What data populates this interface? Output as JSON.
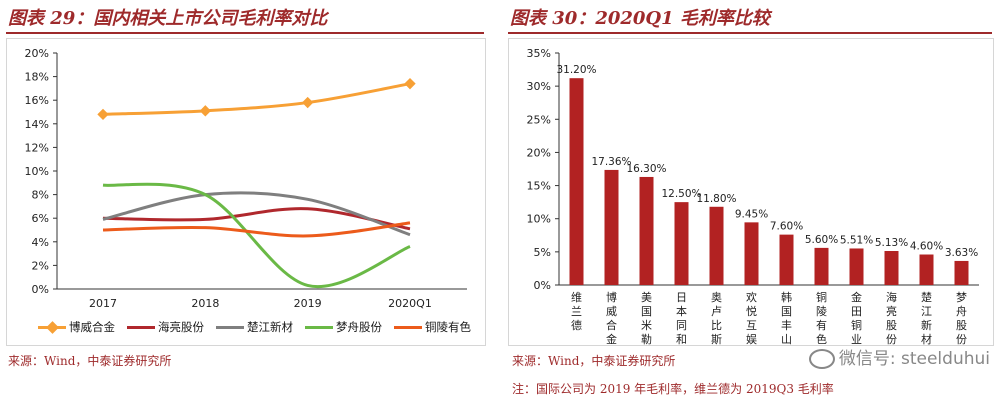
{
  "left_panel": {
    "title": "图表 29：国内相关上市公司毛利率对比",
    "source": "来源：Wind，中泰证券研究所"
  },
  "right_panel": {
    "title": "图表 30：2020Q1 毛利率比较",
    "source": "来源：Wind，中泰证券研究所",
    "note": "注：国际公司为 2019 年毛利率，维兰德为 2019Q3 毛利率"
  },
  "watermark": {
    "text": "微信号: steelduhui"
  },
  "colors": {
    "accent": "#9e2a2b",
    "bar": "#b22222"
  },
  "chart_data": [
    {
      "type": "line",
      "categories": [
        "2017",
        "2018",
        "2019",
        "2020Q1"
      ],
      "yticks": [
        "0%",
        "2%",
        "4%",
        "6%",
        "8%",
        "10%",
        "12%",
        "14%",
        "16%",
        "18%",
        "20%"
      ],
      "ylim": [
        0,
        20
      ],
      "grid": false,
      "legend_position": "bottom",
      "series": [
        {
          "name": "博威合金",
          "color": "#f7a035",
          "marker": "diamond",
          "values": [
            14.8,
            15.1,
            15.8,
            17.4
          ]
        },
        {
          "name": "海亮股份",
          "color": "#b0282d",
          "marker": "none",
          "values": [
            6.0,
            5.9,
            6.8,
            5.1
          ]
        },
        {
          "name": "楚江新材",
          "color": "#7f7f7f",
          "marker": "none",
          "values": [
            5.9,
            8.0,
            7.6,
            4.6
          ]
        },
        {
          "name": "梦舟股份",
          "color": "#6ab946",
          "marker": "none",
          "values": [
            8.8,
            8.0,
            0.3,
            3.6
          ]
        },
        {
          "name": "铜陵有色",
          "color": "#ec5b1b",
          "marker": "none",
          "values": [
            5.0,
            5.2,
            4.5,
            5.6
          ]
        }
      ]
    },
    {
      "type": "bar",
      "categories": [
        "维兰德",
        "博威合金",
        "美国米勒",
        "日本同和",
        "奥卢比斯",
        "欢悦互娱",
        "韩国丰山",
        "铜陵有色",
        "金田铜业",
        "海亮股份",
        "楚江新材",
        "梦舟股份"
      ],
      "values": [
        31.2,
        17.36,
        16.3,
        12.5,
        11.8,
        9.45,
        7.6,
        5.6,
        5.51,
        5.13,
        4.6,
        3.63
      ],
      "data_labels": [
        "31.20%",
        "17.36%",
        "16.30%",
        "12.50%",
        "11.80%",
        "9.45%",
        "7.60%",
        "5.60%",
        "5.51%",
        "5.13%",
        "4.60%",
        "3.63%"
      ],
      "yticks": [
        "0%",
        "5%",
        "10%",
        "15%",
        "20%",
        "25%",
        "30%",
        "35%"
      ],
      "ylim": [
        0,
        35
      ],
      "grid": false,
      "legend_position": "none"
    }
  ]
}
